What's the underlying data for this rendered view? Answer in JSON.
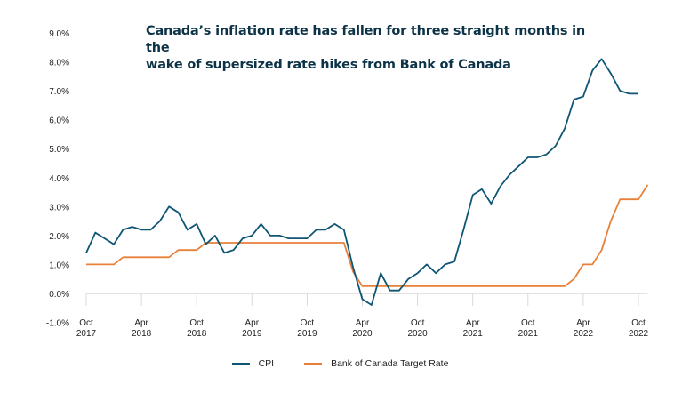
{
  "chart_data": {
    "type": "line",
    "title": "Canada’s inflation rate has fallen for three straight months in the wake of supersized rate hikes from Bank of Canada",
    "title_lines": [
      "Canada’s inflation rate has fallen for three straight months in the",
      "wake of supersized rate hikes from Bank of Canada"
    ],
    "xlabel": "",
    "ylabel": "",
    "ylim": [
      -1.0,
      9.0
    ],
    "yticks": [
      -1.0,
      0.0,
      1.0,
      2.0,
      3.0,
      4.0,
      5.0,
      6.0,
      7.0,
      8.0,
      9.0
    ],
    "ytick_labels": [
      "-1.0%",
      "0.0%",
      "1.0%",
      "2.0%",
      "3.0%",
      "4.0%",
      "5.0%",
      "6.0%",
      "7.0%",
      "8.0%",
      "9.0%"
    ],
    "x_start": "2017-10",
    "x_end": "2022-10",
    "xticks": [
      {
        "month_index": 0,
        "label_line1": "Oct",
        "label_line2": "2017"
      },
      {
        "month_index": 6,
        "label_line1": "Apr",
        "label_line2": "2018"
      },
      {
        "month_index": 12,
        "label_line1": "Oct",
        "label_line2": "2018"
      },
      {
        "month_index": 18,
        "label_line1": "Apr",
        "label_line2": "2019"
      },
      {
        "month_index": 24,
        "label_line1": "Oct",
        "label_line2": "2019"
      },
      {
        "month_index": 30,
        "label_line1": "Apr",
        "label_line2": "2020"
      },
      {
        "month_index": 36,
        "label_line1": "Oct",
        "label_line2": "2020"
      },
      {
        "month_index": 42,
        "label_line1": "Apr",
        "label_line2": "2021"
      },
      {
        "month_index": 48,
        "label_line1": "Oct",
        "label_line2": "2021"
      },
      {
        "month_index": 54,
        "label_line1": "Apr",
        "label_line2": "2022"
      },
      {
        "month_index": 60,
        "label_line1": "Oct",
        "label_line2": "2022"
      }
    ],
    "grid": false,
    "legend_position": "bottom",
    "series": [
      {
        "name": "CPI",
        "color": "#0f5574",
        "month_offsets": [
          0,
          1,
          2,
          3,
          4,
          5,
          6,
          7,
          8,
          9,
          10,
          11,
          12,
          13,
          14,
          15,
          16,
          17,
          18,
          19,
          20,
          21,
          22,
          23,
          24,
          25,
          26,
          27,
          28,
          29,
          30,
          31,
          32,
          33,
          34,
          35,
          36,
          37,
          38,
          39,
          40,
          41,
          42,
          43,
          44,
          45,
          46,
          47,
          48,
          49,
          50,
          51,
          52,
          53,
          54,
          55,
          56,
          57,
          58,
          59,
          60
        ],
        "values": [
          1.4,
          2.1,
          1.9,
          1.7,
          2.2,
          2.3,
          2.2,
          2.2,
          2.5,
          3.0,
          2.8,
          2.2,
          2.4,
          1.7,
          2.0,
          1.4,
          1.5,
          1.9,
          2.0,
          2.4,
          2.0,
          2.0,
          1.9,
          1.9,
          1.9,
          2.2,
          2.2,
          2.4,
          2.2,
          0.9,
          -0.2,
          -0.4,
          0.7,
          0.1,
          0.1,
          0.5,
          0.7,
          1.0,
          0.7,
          1.0,
          1.1,
          2.2,
          3.4,
          3.6,
          3.1,
          3.7,
          4.1,
          4.4,
          4.7,
          4.7,
          4.8,
          5.1,
          5.7,
          6.7,
          6.8,
          7.7,
          8.1,
          7.6,
          7.0,
          6.9,
          6.9
        ]
      },
      {
        "name": "Bank of Canada Target Rate",
        "color": "#e8803a",
        "month_offsets": [
          0,
          1,
          2,
          3,
          4,
          5,
          6,
          7,
          8,
          9,
          10,
          11,
          12,
          13,
          14,
          15,
          16,
          17,
          18,
          19,
          20,
          21,
          22,
          23,
          24,
          25,
          26,
          27,
          28,
          29,
          30,
          31,
          32,
          33,
          34,
          35,
          36,
          37,
          38,
          39,
          40,
          41,
          42,
          43,
          44,
          45,
          46,
          47,
          48,
          49,
          50,
          51,
          52,
          53,
          54,
          55,
          56,
          57,
          58,
          59,
          60,
          61
        ],
        "values": [
          1.0,
          1.0,
          1.0,
          1.0,
          1.25,
          1.25,
          1.25,
          1.25,
          1.25,
          1.25,
          1.5,
          1.5,
          1.5,
          1.75,
          1.75,
          1.75,
          1.75,
          1.75,
          1.75,
          1.75,
          1.75,
          1.75,
          1.75,
          1.75,
          1.75,
          1.75,
          1.75,
          1.75,
          1.75,
          0.75,
          0.25,
          0.25,
          0.25,
          0.25,
          0.25,
          0.25,
          0.25,
          0.25,
          0.25,
          0.25,
          0.25,
          0.25,
          0.25,
          0.25,
          0.25,
          0.25,
          0.25,
          0.25,
          0.25,
          0.25,
          0.25,
          0.25,
          0.25,
          0.5,
          1.0,
          1.0,
          1.5,
          2.5,
          3.25,
          3.25,
          3.25,
          3.75
        ]
      }
    ]
  },
  "legend": {
    "items": [
      {
        "label": "CPI",
        "color": "#0f5574"
      },
      {
        "label": "Bank of Canada Target Rate",
        "color": "#e8803a"
      }
    ]
  }
}
